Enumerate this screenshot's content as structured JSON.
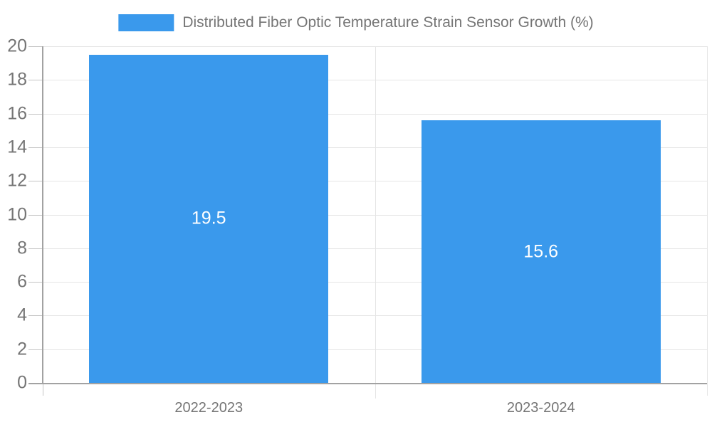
{
  "chart_data": {
    "type": "bar",
    "title": "",
    "series_name": "Distributed Fiber Optic Temperature Strain Sensor Growth (%)",
    "categories": [
      "2022-2023",
      "2023-2024"
    ],
    "values": [
      19.5,
      15.6
    ],
    "value_labels": [
      "19.5",
      "15.6"
    ],
    "xlabel": "",
    "ylabel": "",
    "ylim": [
      0,
      20
    ],
    "ytick_step": 2,
    "ytick_labels": [
      "0",
      "2",
      "4",
      "6",
      "8",
      "10",
      "12",
      "14",
      "16",
      "18",
      "20"
    ],
    "grid": true,
    "legend_position": "top-center",
    "colors": {
      "bar": "#3a99ec",
      "value_label": "#ffffff",
      "tick_label": "#757575",
      "legend_label": "#757575",
      "gridline": "#e5e5e5",
      "tick_mark": "#c4c4c4",
      "axis_line": "#a2a2a2",
      "background": "#ffffff"
    }
  }
}
